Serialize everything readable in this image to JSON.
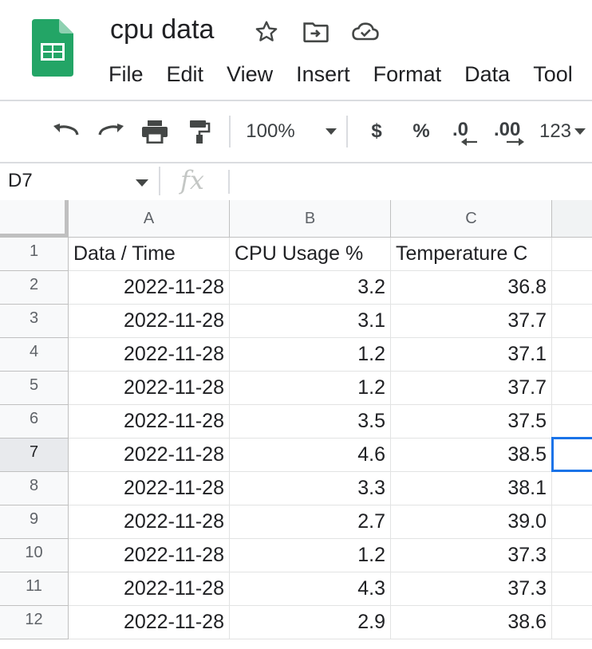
{
  "document": {
    "title": "cpu data"
  },
  "menu": [
    "File",
    "Edit",
    "View",
    "Insert",
    "Format",
    "Data",
    "Tool"
  ],
  "toolbar": {
    "zoom": "100%",
    "currency": "$",
    "percent": "%",
    "decrease_decimals": ".0",
    "increase_decimals": ".00",
    "more_formats": "123"
  },
  "formula_bar": {
    "name_box": "D7",
    "fx_label": "fx",
    "formula": ""
  },
  "sheet": {
    "column_headers": [
      "A",
      "B",
      "C"
    ],
    "row_numbers": [
      "1",
      "2",
      "3",
      "4",
      "5",
      "6",
      "7",
      "8",
      "9",
      "10",
      "11",
      "12"
    ],
    "header_row": [
      "Data / Time",
      "CPU Usage %",
      "Temperature C"
    ],
    "rows": [
      [
        "2022-11-28",
        "3.2",
        "36.8"
      ],
      [
        "2022-11-28",
        "3.1",
        "37.7"
      ],
      [
        "2022-11-28",
        "1.2",
        "37.1"
      ],
      [
        "2022-11-28",
        "1.2",
        "37.7"
      ],
      [
        "2022-11-28",
        "3.5",
        "37.5"
      ],
      [
        "2022-11-28",
        "4.6",
        "38.5"
      ],
      [
        "2022-11-28",
        "3.3",
        "38.1"
      ],
      [
        "2022-11-28",
        "2.7",
        "39.0"
      ],
      [
        "2022-11-28",
        "1.2",
        "37.3"
      ],
      [
        "2022-11-28",
        "4.3",
        "37.3"
      ],
      [
        "2022-11-28",
        "2.9",
        "38.6"
      ]
    ],
    "active_cell": "D7"
  },
  "colors": {
    "sheets_green": "#23a566",
    "selection_blue": "#1a73e8",
    "header_bg": "#f8f9fa",
    "grid_line": "#e2e3e3"
  },
  "icons": {
    "star": "star-icon",
    "move": "move-to-folder-icon",
    "cloud": "cloud-saved-icon",
    "undo": "undo-icon",
    "redo": "redo-icon",
    "print": "print-icon",
    "paint_format": "paint-format-icon"
  }
}
